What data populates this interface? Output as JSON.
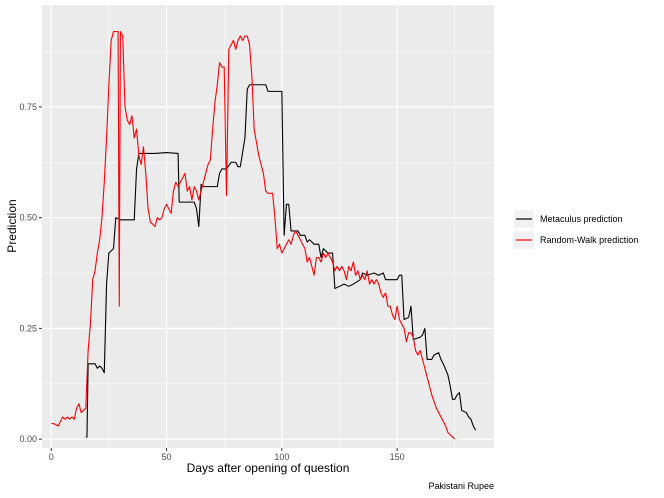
{
  "chart_data": {
    "type": "line",
    "xlabel": "Days after opening of question",
    "ylabel": "Prediction",
    "caption": "Pakistani Rupee",
    "xlim": [
      -4,
      192
    ],
    "ylim": [
      -0.02,
      0.98
    ],
    "x_ticks": [
      0,
      50,
      100,
      150
    ],
    "y_ticks": [
      0.0,
      0.25,
      0.5,
      0.75
    ],
    "y_tick_labels": [
      "0.00",
      "0.25",
      "0.50",
      "0.75"
    ],
    "grid": true,
    "legend_position": "right",
    "background": "#ebebeb",
    "series": [
      {
        "name": "Metaculus prediction",
        "color": "#000000",
        "points": [
          [
            15,
            0.005
          ],
          [
            15.5,
            0.005
          ],
          [
            16,
            0.17
          ],
          [
            19,
            0.17
          ],
          [
            20,
            0.16
          ],
          [
            21,
            0.165
          ],
          [
            22,
            0.16
          ],
          [
            23,
            0.15
          ],
          [
            24,
            0.35
          ],
          [
            25,
            0.42
          ],
          [
            26,
            0.425
          ],
          [
            27,
            0.43
          ],
          [
            28,
            0.5
          ],
          [
            30,
            0.495
          ],
          [
            33,
            0.495
          ],
          [
            36,
            0.495
          ],
          [
            37,
            0.61
          ],
          [
            38,
            0.645
          ],
          [
            45,
            0.645
          ],
          [
            50,
            0.647
          ],
          [
            55,
            0.645
          ],
          [
            55.5,
            0.535
          ],
          [
            62,
            0.535
          ],
          [
            63,
            0.52
          ],
          [
            64,
            0.48
          ],
          [
            65,
            0.575
          ],
          [
            66,
            0.57
          ],
          [
            72,
            0.57
          ],
          [
            73,
            0.6
          ],
          [
            74,
            0.61
          ],
          [
            76,
            0.61
          ],
          [
            78,
            0.625
          ],
          [
            80,
            0.625
          ],
          [
            81,
            0.615
          ],
          [
            82,
            0.615
          ],
          [
            84,
            0.68
          ],
          [
            85,
            0.79
          ],
          [
            86,
            0.8
          ],
          [
            93,
            0.8
          ],
          [
            94,
            0.785
          ],
          [
            100,
            0.785
          ],
          [
            101,
            0.46
          ],
          [
            102,
            0.53
          ],
          [
            103,
            0.53
          ],
          [
            104,
            0.47
          ],
          [
            107,
            0.47
          ],
          [
            108,
            0.46
          ],
          [
            110,
            0.46
          ],
          [
            111,
            0.445
          ],
          [
            112,
            0.45
          ],
          [
            114,
            0.44
          ],
          [
            116,
            0.44
          ],
          [
            117,
            0.41
          ],
          [
            118,
            0.43
          ],
          [
            120,
            0.42
          ],
          [
            122,
            0.42
          ],
          [
            123,
            0.34
          ],
          [
            125,
            0.345
          ],
          [
            127,
            0.35
          ],
          [
            129,
            0.345
          ],
          [
            131,
            0.35
          ],
          [
            134,
            0.36
          ],
          [
            135,
            0.375
          ],
          [
            137,
            0.37
          ],
          [
            140,
            0.375
          ],
          [
            142,
            0.37
          ],
          [
            144,
            0.375
          ],
          [
            145,
            0.36
          ],
          [
            150,
            0.36
          ],
          [
            151,
            0.37
          ],
          [
            152,
            0.37
          ],
          [
            153,
            0.27
          ],
          [
            155,
            0.275
          ],
          [
            156,
            0.3
          ],
          [
            157,
            0.225
          ],
          [
            160,
            0.23
          ],
          [
            161,
            0.235
          ],
          [
            162,
            0.25
          ],
          [
            163,
            0.18
          ],
          [
            165,
            0.18
          ],
          [
            166,
            0.19
          ],
          [
            168,
            0.195
          ],
          [
            169,
            0.18
          ],
          [
            170,
            0.17
          ],
          [
            172,
            0.145
          ],
          [
            173,
            0.12
          ],
          [
            174,
            0.09
          ],
          [
            175,
            0.09
          ],
          [
            176,
            0.1
          ],
          [
            177,
            0.105
          ],
          [
            178,
            0.065
          ],
          [
            180,
            0.06
          ],
          [
            181,
            0.05
          ],
          [
            182,
            0.045
          ],
          [
            183,
            0.03
          ],
          [
            184,
            0.02
          ]
        ]
      },
      {
        "name": "Random-Walk prediction",
        "color": "#ff0000",
        "points": [
          [
            0,
            0.035
          ],
          [
            1,
            0.035
          ],
          [
            3,
            0.03
          ],
          [
            4,
            0.04
          ],
          [
            5,
            0.05
          ],
          [
            6,
            0.045
          ],
          [
            7,
            0.05
          ],
          [
            8,
            0.045
          ],
          [
            9,
            0.05
          ],
          [
            10,
            0.045
          ],
          [
            11,
            0.07
          ],
          [
            12,
            0.08
          ],
          [
            13,
            0.06
          ],
          [
            14,
            0.065
          ],
          [
            15,
            0.07
          ],
          [
            16,
            0.2
          ],
          [
            17,
            0.26
          ],
          [
            18,
            0.36
          ],
          [
            19,
            0.38
          ],
          [
            20,
            0.42
          ],
          [
            21,
            0.45
          ],
          [
            22,
            0.5
          ],
          [
            23,
            0.58
          ],
          [
            24,
            0.68
          ],
          [
            25,
            0.8
          ],
          [
            26,
            0.9
          ],
          [
            27,
            0.92
          ],
          [
            28,
            0.92
          ],
          [
            29,
            0.92
          ],
          [
            29.5,
            0.3
          ],
          [
            30,
            0.92
          ],
          [
            31,
            0.91
          ],
          [
            32,
            0.75
          ],
          [
            33,
            0.72
          ],
          [
            34,
            0.71
          ],
          [
            35,
            0.73
          ],
          [
            36,
            0.68
          ],
          [
            37,
            0.7
          ],
          [
            38,
            0.64
          ],
          [
            39,
            0.62
          ],
          [
            40,
            0.66
          ],
          [
            41,
            0.6
          ],
          [
            42,
            0.52
          ],
          [
            43,
            0.49
          ],
          [
            44,
            0.485
          ],
          [
            45,
            0.48
          ],
          [
            46,
            0.5
          ],
          [
            47,
            0.495
          ],
          [
            48,
            0.5
          ],
          [
            49,
            0.52
          ],
          [
            50,
            0.53
          ],
          [
            52,
            0.51
          ],
          [
            53,
            0.56
          ],
          [
            54,
            0.58
          ],
          [
            55,
            0.57
          ],
          [
            56,
            0.58
          ],
          [
            57,
            0.59
          ],
          [
            58,
            0.6
          ],
          [
            59,
            0.56
          ],
          [
            60,
            0.57
          ],
          [
            61,
            0.54
          ],
          [
            62,
            0.57
          ],
          [
            63,
            0.56
          ],
          [
            64,
            0.54
          ],
          [
            65,
            0.56
          ],
          [
            66,
            0.58
          ],
          [
            67,
            0.6
          ],
          [
            68,
            0.62
          ],
          [
            69,
            0.63
          ],
          [
            70,
            0.7
          ],
          [
            71,
            0.76
          ],
          [
            72,
            0.8
          ],
          [
            73,
            0.85
          ],
          [
            74,
            0.84
          ],
          [
            75,
            0.84
          ],
          [
            76,
            0.55
          ],
          [
            77,
            0.88
          ],
          [
            78,
            0.89
          ],
          [
            79,
            0.9
          ],
          [
            80,
            0.88
          ],
          [
            81,
            0.9
          ],
          [
            82,
            0.91
          ],
          [
            83,
            0.9
          ],
          [
            84,
            0.91
          ],
          [
            85,
            0.91
          ],
          [
            86,
            0.89
          ],
          [
            87,
            0.82
          ],
          [
            88,
            0.7
          ],
          [
            89,
            0.67
          ],
          [
            90,
            0.64
          ],
          [
            91,
            0.62
          ],
          [
            92,
            0.6
          ],
          [
            93,
            0.56
          ],
          [
            94,
            0.555
          ],
          [
            96,
            0.555
          ],
          [
            97,
            0.5
          ],
          [
            98,
            0.43
          ],
          [
            99,
            0.44
          ],
          [
            100,
            0.42
          ],
          [
            101,
            0.43
          ],
          [
            102,
            0.44
          ],
          [
            103,
            0.45
          ],
          [
            104,
            0.44
          ],
          [
            105,
            0.46
          ],
          [
            106,
            0.47
          ],
          [
            107,
            0.46
          ],
          [
            108,
            0.45
          ],
          [
            109,
            0.44
          ],
          [
            110,
            0.43
          ],
          [
            111,
            0.4
          ],
          [
            112,
            0.41
          ],
          [
            113,
            0.39
          ],
          [
            114,
            0.37
          ],
          [
            115,
            0.41
          ],
          [
            116,
            0.41
          ],
          [
            117,
            0.4
          ],
          [
            118,
            0.42
          ],
          [
            119,
            0.41
          ],
          [
            120,
            0.42
          ],
          [
            121,
            0.41
          ],
          [
            122,
            0.4
          ],
          [
            123,
            0.38
          ],
          [
            124,
            0.39
          ],
          [
            125,
            0.38
          ],
          [
            126,
            0.39
          ],
          [
            127,
            0.38
          ],
          [
            128,
            0.36
          ],
          [
            129,
            0.39
          ],
          [
            130,
            0.38
          ],
          [
            131,
            0.4
          ],
          [
            132,
            0.37
          ],
          [
            133,
            0.38
          ],
          [
            134,
            0.36
          ],
          [
            135,
            0.37
          ],
          [
            136,
            0.36
          ],
          [
            137,
            0.38
          ],
          [
            138,
            0.35
          ],
          [
            139,
            0.36
          ],
          [
            140,
            0.35
          ],
          [
            141,
            0.36
          ],
          [
            142,
            0.35
          ],
          [
            143,
            0.33
          ],
          [
            144,
            0.32
          ],
          [
            145,
            0.33
          ],
          [
            146,
            0.3
          ],
          [
            147,
            0.3
          ],
          [
            148,
            0.28
          ],
          [
            149,
            0.27
          ],
          [
            150,
            0.3
          ],
          [
            151,
            0.27
          ],
          [
            152,
            0.26
          ],
          [
            153,
            0.25
          ],
          [
            154,
            0.22
          ],
          [
            155,
            0.24
          ],
          [
            156,
            0.24
          ],
          [
            157,
            0.23
          ],
          [
            158,
            0.2
          ],
          [
            159,
            0.19
          ],
          [
            160,
            0.2
          ],
          [
            161,
            0.18
          ],
          [
            162,
            0.16
          ],
          [
            163,
            0.14
          ],
          [
            164,
            0.12
          ],
          [
            165,
            0.1
          ],
          [
            166,
            0.085
          ],
          [
            167,
            0.07
          ],
          [
            168,
            0.06
          ],
          [
            169,
            0.05
          ],
          [
            170,
            0.04
          ],
          [
            171,
            0.03
          ],
          [
            172,
            0.015
          ],
          [
            173,
            0.01
          ],
          [
            174,
            0.005
          ],
          [
            175,
            0.0
          ]
        ]
      }
    ]
  }
}
